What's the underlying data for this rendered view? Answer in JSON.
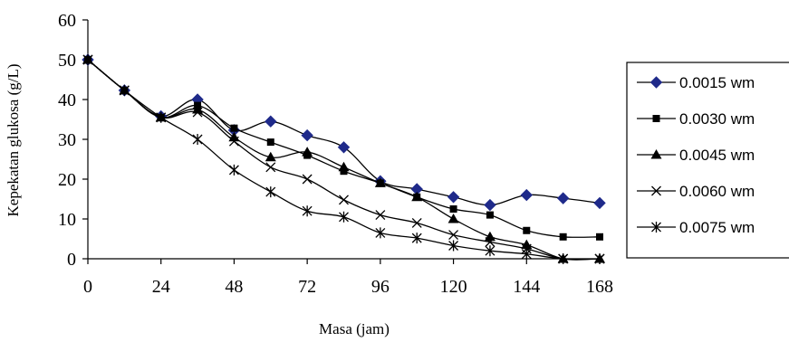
{
  "chart_data": {
    "type": "line",
    "xlabel": "Masa (jam)",
    "ylabel": "Kepekatan glukosa (g/L)",
    "xlim": [
      0,
      168
    ],
    "ylim": [
      0,
      60
    ],
    "x_ticks": [
      0,
      24,
      48,
      72,
      96,
      120,
      144,
      168
    ],
    "y_ticks": [
      0,
      10,
      20,
      30,
      40,
      50,
      60
    ],
    "grid": false,
    "legend_position": "right",
    "x": [
      0,
      12,
      24,
      36,
      48,
      60,
      72,
      84,
      96,
      108,
      120,
      132,
      144,
      156,
      168
    ],
    "series": [
      {
        "name": "0.0015 wm",
        "marker": "diamond",
        "marker_color": "#1f2a8a",
        "values": [
          50,
          42.3,
          35.8,
          40,
          32.3,
          34.5,
          31,
          28,
          19.5,
          17.5,
          15.5,
          13.5,
          16,
          15.2,
          14
        ]
      },
      {
        "name": "0.0030 wm",
        "marker": "square",
        "marker_color": "#000000",
        "values": [
          50,
          42.3,
          35.5,
          38.5,
          32.8,
          29.3,
          26,
          22,
          19,
          15.5,
          12.5,
          11,
          7.1,
          5.5,
          5.5
        ]
      },
      {
        "name": "0.0045 wm",
        "marker": "triangle",
        "marker_color": "#000000",
        "values": [
          50,
          42.3,
          35.5,
          37.5,
          30.5,
          25.5,
          26.8,
          23,
          19,
          15.5,
          10,
          5.5,
          3.5,
          0,
          0
        ]
      },
      {
        "name": "0.0060 wm",
        "marker": "x",
        "marker_color": "#000000",
        "values": [
          50,
          42.3,
          35.5,
          36.8,
          29.5,
          23,
          20,
          14.8,
          11,
          9,
          6,
          4.2,
          2.5,
          0,
          0
        ]
      },
      {
        "name": "0.0075 wm",
        "marker": "star",
        "marker_color": "#000000",
        "values": [
          50,
          42.3,
          35.5,
          30,
          22.3,
          16.8,
          12,
          10.5,
          6.5,
          5.2,
          3.3,
          2,
          1.2,
          0,
          0
        ]
      }
    ]
  }
}
